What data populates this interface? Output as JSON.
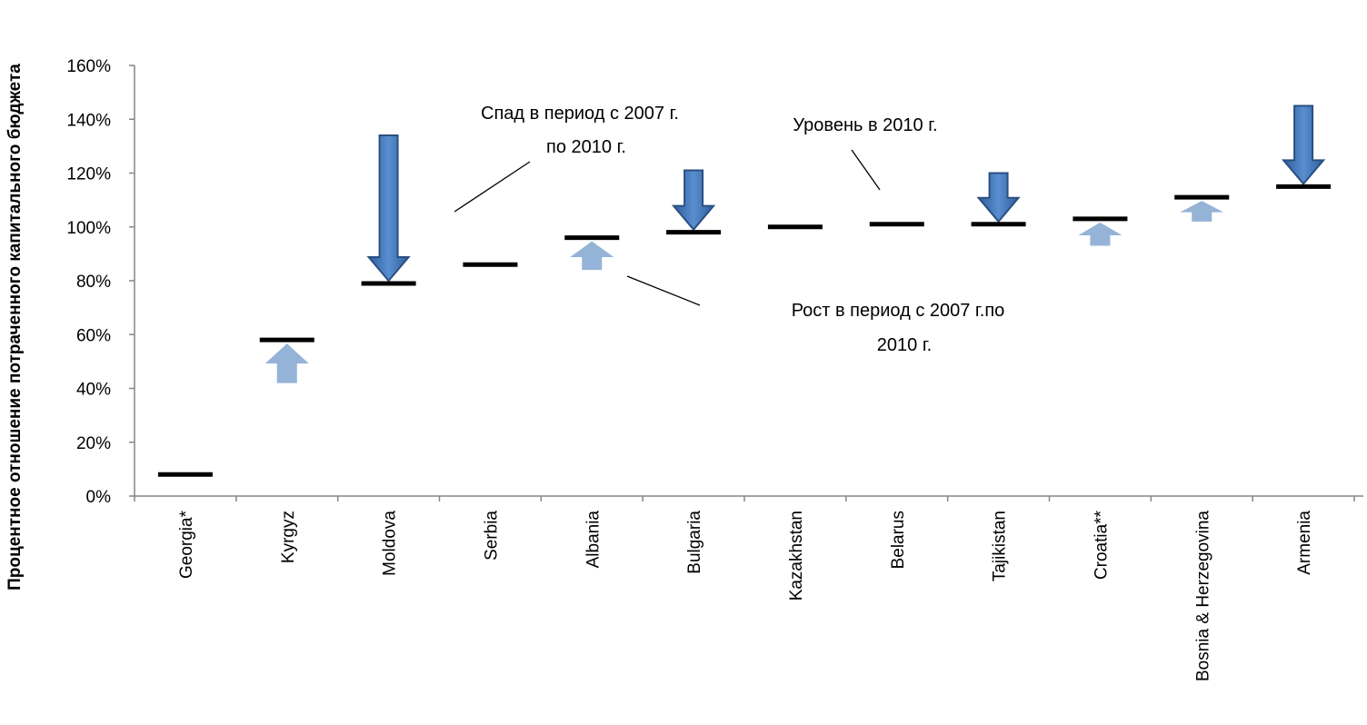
{
  "chart_data": {
    "type": "range-arrow",
    "ylabel": "Процентное отношение потраченного капитального бюджета",
    "ylim": [
      0,
      160
    ],
    "yticks": [
      "0%",
      "20%",
      "40%",
      "60%",
      "80%",
      "100%",
      "120%",
      "140%",
      "160%"
    ],
    "categories": [
      "Georgia*",
      "Kyrgyz",
      "Moldova",
      "Serbia",
      "Albania",
      "Bulgaria",
      "Kazakhstan",
      "Belarus",
      "Tajikistan",
      "Croatia**",
      "Bosnia & Herzegovina",
      "Armenia"
    ],
    "series": [
      {
        "name": "Уровень в 2010 г.",
        "values": [
          8,
          58,
          79,
          86,
          96,
          98,
          100,
          101,
          101,
          103,
          111,
          115
        ]
      }
    ],
    "changes": [
      {
        "category": "Kyrgyz",
        "direction": "up",
        "from": 42,
        "to": 58
      },
      {
        "category": "Moldova",
        "direction": "down",
        "from": 134,
        "to": 79
      },
      {
        "category": "Albania",
        "direction": "up",
        "from": 84,
        "to": 96
      },
      {
        "category": "Bulgaria",
        "direction": "down",
        "from": 121,
        "to": 98
      },
      {
        "category": "Tajikistan",
        "direction": "down",
        "from": 120,
        "to": 101
      },
      {
        "category": "Croatia**",
        "direction": "up",
        "from": 93,
        "to": 103
      },
      {
        "category": "Bosnia & Herzegovina",
        "direction": "up",
        "from": 102,
        "to": 111
      },
      {
        "category": "Armenia",
        "direction": "down",
        "from": 145,
        "to": 115
      }
    ],
    "annotations": {
      "decline_line1": "Спад в период с 2007 г.",
      "decline_line2": "по 2010 г.",
      "level": "Уровень в 2010 г.",
      "growth_line1": "Рост в период с  2007 г.по",
      "growth_line2": "2010 г."
    },
    "colors": {
      "down_arrow": "#3f6faf",
      "down_arrow_edge": "#2b4f80",
      "up_arrow": "#95b3d7",
      "level_mark": "#000000"
    },
    "grid": false
  }
}
